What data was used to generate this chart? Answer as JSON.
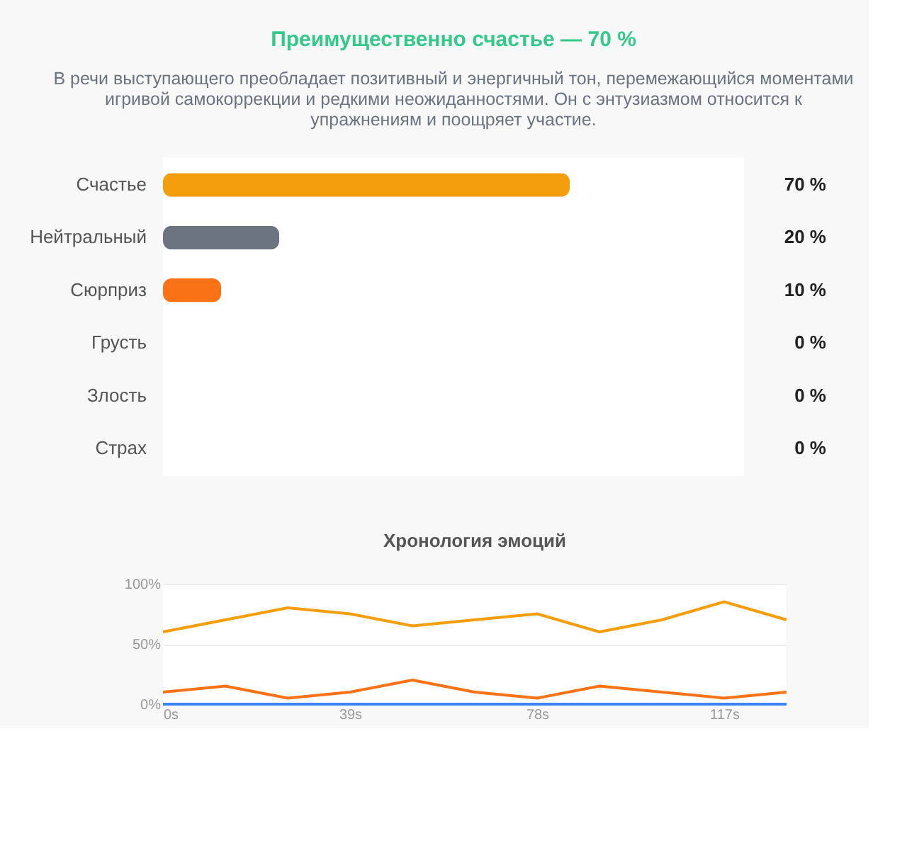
{
  "chart_data": [
    {
      "type": "bar",
      "orientation": "horizontal",
      "title": "Преимущественно счастье — 70 %",
      "subtitle": "В речи выступающего преобладает позитивный и энергичный тон, перемежающийся моментами игривой самокоррекции и редкими неожиданностями. Он с энтузиазмом относится к упражнениям и поощряет участие.",
      "categories": [
        "Счастье",
        "Нейтральный",
        "Сюрприз",
        "Грусть",
        "Злость",
        "Страх"
      ],
      "values": [
        70,
        20,
        10,
        0,
        0,
        0
      ],
      "colors": [
        "#f59e0b",
        "#6b7280",
        "#f97316",
        "#3b82f6",
        "#ef4444",
        "#8b5cf6"
      ],
      "value_labels": [
        "70 %",
        "20 %",
        "10 %",
        "0 %",
        "0 %",
        "0 %"
      ],
      "xlim": [
        0,
        100
      ],
      "tick_labels": "y",
      "grid": false
    },
    {
      "type": "line",
      "title": "Хронология эмоций",
      "x": [
        0,
        13,
        26,
        39,
        52,
        65,
        78,
        91,
        104,
        117,
        130
      ],
      "series": [
        {
          "color": "#f59e0b",
          "values": [
            60,
            70,
            80,
            75,
            65,
            70,
            75,
            60,
            70,
            85,
            70
          ]
        },
        {
          "color": "#f97316",
          "values": [
            10,
            15,
            5,
            10,
            20,
            10,
            5,
            15,
            10,
            5,
            10
          ]
        },
        {
          "color": "#3b82f6",
          "values": [
            0,
            0,
            0,
            0,
            0,
            0,
            0,
            0,
            0,
            0,
            0
          ]
        }
      ],
      "xlim": [
        0,
        130
      ],
      "xticks": [
        {
          "value": 0,
          "label": "0s"
        },
        {
          "value": 39,
          "label": "39s"
        },
        {
          "value": 78,
          "label": "78s"
        },
        {
          "value": 117,
          "label": "117s"
        }
      ],
      "ylim": [
        0,
        100
      ],
      "yticks": [
        {
          "value": 0,
          "label": "0%"
        },
        {
          "value": 50,
          "label": "50%"
        },
        {
          "value": 100,
          "label": "100%"
        }
      ],
      "grid": "y",
      "marker": "none",
      "line_style": "solid"
    }
  ]
}
